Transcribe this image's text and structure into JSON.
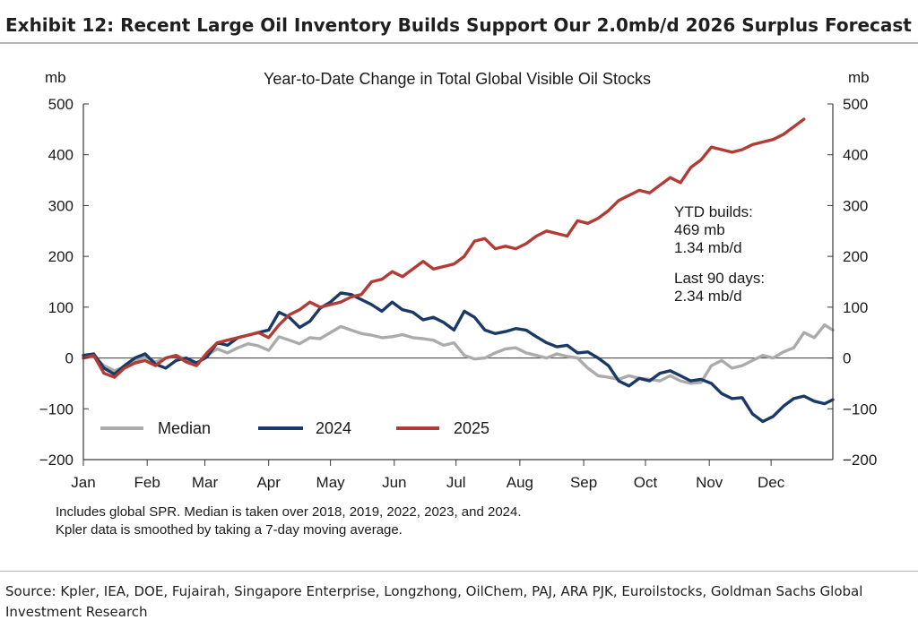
{
  "header": {
    "title": "Exhibit 12: Recent Large Oil Inventory Builds Support Our 2.0mb/d 2026 Surplus Forecast"
  },
  "footer": {
    "source": "Source: Kpler, IEA, DOE, Fujairah, Singapore Enterprise, Longzhong, OilChem, PAJ, ARA PJK, Euroilstocks, Goldman Sachs Global Investment Research"
  },
  "chart_data": {
    "type": "line",
    "title": "Year-to-Date Change in Total Global Visible Oil Stocks",
    "ylabel_left": "mb",
    "ylabel_right": "mb",
    "ylim": [
      -200,
      500
    ],
    "yticks": [
      500,
      400,
      300,
      200,
      100,
      0,
      -100,
      -200
    ],
    "ytick_labels": [
      "500",
      "400",
      "300",
      "200",
      "100",
      "0",
      "−100",
      "−200"
    ],
    "xlim": [
      1,
      365
    ],
    "x_unit": "day of year",
    "months": [
      "Jan",
      "Feb",
      "Mar",
      "Apr",
      "May",
      "Jun",
      "Jul",
      "Aug",
      "Sep",
      "Oct",
      "Nov",
      "Dec"
    ],
    "month_tick_days": [
      1,
      32,
      60,
      91,
      121,
      152,
      182,
      213,
      244,
      274,
      305,
      335
    ],
    "grid": false,
    "zero_line": true,
    "legend": {
      "placement": "bottom-left",
      "entries": [
        "Median",
        "2024",
        "2025"
      ]
    },
    "annotations": [
      "YTD builds:",
      "469 mb",
      "1.34 mb/d",
      "Last 90 days:",
      "2.34 mb/d"
    ],
    "notes": [
      "Includes global SPR. Median is taken over 2018, 2019, 2022, 2023, and 2024.",
      "Kpler data is smoothed by taking a 7-day moving average."
    ],
    "series": [
      {
        "name": "Median",
        "color": "#ababab",
        "x": [
          1,
          6,
          11,
          16,
          21,
          26,
          31,
          36,
          41,
          46,
          51,
          56,
          61,
          66,
          71,
          76,
          81,
          86,
          91,
          96,
          101,
          106,
          111,
          116,
          121,
          126,
          131,
          136,
          141,
          146,
          151,
          156,
          161,
          166,
          171,
          176,
          181,
          186,
          191,
          196,
          201,
          206,
          211,
          216,
          221,
          226,
          231,
          236,
          241,
          246,
          251,
          256,
          261,
          266,
          271,
          276,
          281,
          286,
          291,
          296,
          301,
          306,
          311,
          316,
          321,
          326,
          331,
          336,
          341,
          346,
          351,
          356,
          361,
          365
        ],
        "values": [
          0,
          3,
          -15,
          -25,
          -18,
          -5,
          2,
          -8,
          0,
          5,
          -3,
          -12,
          5,
          18,
          10,
          20,
          28,
          24,
          15,
          42,
          35,
          28,
          40,
          38,
          50,
          62,
          55,
          48,
          45,
          40,
          42,
          46,
          40,
          38,
          35,
          25,
          30,
          5,
          -2,
          0,
          10,
          18,
          20,
          10,
          5,
          0,
          8,
          3,
          0,
          -20,
          -35,
          -38,
          -42,
          -35,
          -40,
          -42,
          -45,
          -35,
          -45,
          -50,
          -48,
          -15,
          -5,
          -20,
          -15,
          -5,
          5,
          0,
          12,
          20,
          50,
          40,
          65,
          55
        ]
      },
      {
        "name": "2024",
        "color": "#1b3966",
        "x": [
          1,
          6,
          11,
          16,
          21,
          26,
          31,
          36,
          41,
          46,
          51,
          56,
          61,
          66,
          71,
          76,
          81,
          86,
          91,
          96,
          101,
          106,
          111,
          116,
          121,
          126,
          131,
          136,
          141,
          146,
          151,
          156,
          161,
          166,
          171,
          176,
          181,
          186,
          191,
          196,
          201,
          206,
          211,
          216,
          221,
          226,
          231,
          236,
          241,
          246,
          251,
          256,
          261,
          266,
          271,
          276,
          281,
          286,
          291,
          296,
          301,
          306,
          311,
          316,
          321,
          326,
          331,
          336,
          341,
          346,
          351,
          356,
          361,
          365
        ],
        "values": [
          5,
          8,
          -20,
          -32,
          -15,
          0,
          8,
          -12,
          -20,
          -5,
          0,
          -10,
          2,
          30,
          25,
          40,
          45,
          50,
          55,
          90,
          80,
          60,
          72,
          98,
          110,
          128,
          125,
          115,
          105,
          92,
          110,
          95,
          90,
          75,
          80,
          70,
          55,
          92,
          80,
          55,
          48,
          52,
          58,
          55,
          42,
          30,
          22,
          25,
          10,
          12,
          0,
          -15,
          -45,
          -55,
          -40,
          -45,
          -30,
          -25,
          -35,
          -45,
          -42,
          -50,
          -70,
          -80,
          -78,
          -110,
          -125,
          -115,
          -95,
          -80,
          -75,
          -85,
          -90,
          -82
        ]
      },
      {
        "name": "2025",
        "color": "#b33b35",
        "x": [
          1,
          6,
          11,
          16,
          21,
          26,
          31,
          36,
          41,
          46,
          51,
          56,
          61,
          66,
          71,
          76,
          81,
          86,
          91,
          96,
          101,
          106,
          111,
          116,
          121,
          126,
          131,
          136,
          141,
          146,
          151,
          156,
          161,
          166,
          171,
          176,
          181,
          186,
          191,
          196,
          201,
          206,
          211,
          216,
          221,
          226,
          231,
          236,
          241,
          246,
          251,
          256,
          261,
          266,
          271,
          276,
          281,
          286,
          291,
          296,
          301,
          306,
          311,
          316,
          321,
          326,
          331,
          336,
          341,
          346,
          351
        ],
        "values": [
          0,
          5,
          -30,
          -38,
          -20,
          -10,
          -5,
          -15,
          0,
          5,
          -8,
          -15,
          10,
          30,
          35,
          40,
          45,
          50,
          40,
          65,
          85,
          95,
          110,
          100,
          105,
          110,
          120,
          125,
          150,
          155,
          170,
          160,
          175,
          190,
          175,
          180,
          185,
          200,
          230,
          235,
          215,
          220,
          215,
          225,
          240,
          250,
          245,
          240,
          270,
          265,
          275,
          290,
          310,
          320,
          330,
          325,
          340,
          355,
          345,
          375,
          390,
          415,
          410,
          405,
          410,
          420,
          425,
          430,
          440,
          455,
          470
        ]
      }
    ]
  }
}
